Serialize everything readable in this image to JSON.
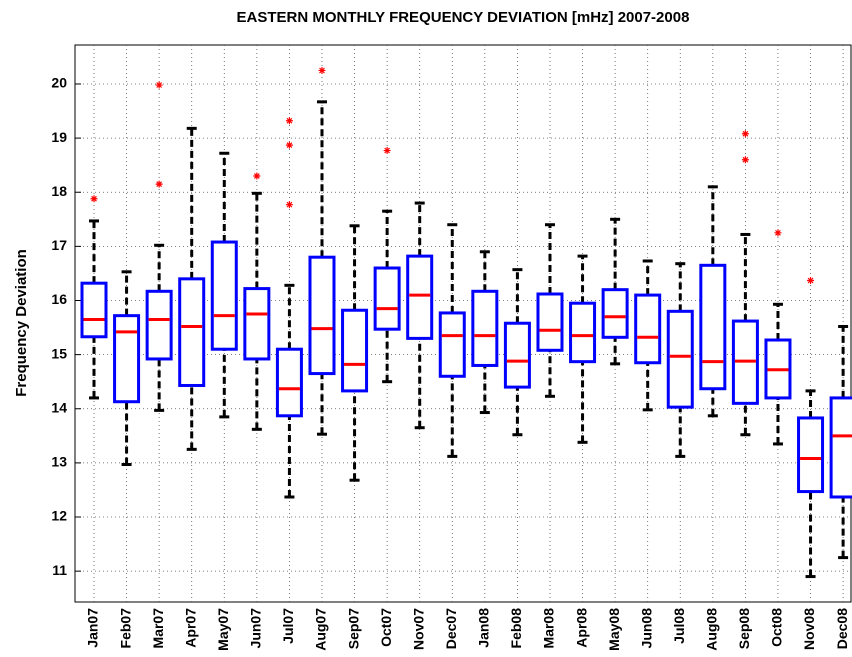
{
  "chart_data": {
    "type": "box",
    "title": "EASTERN MONTHLY FREQUENCY DEVIATION [mHz] 2007-2008",
    "y_label": "Frequency Deviation",
    "categories": [
      "Jan07",
      "Feb07",
      "Mar07",
      "Apr07",
      "May07",
      "Jun07",
      "Jul07",
      "Aug07",
      "Sep07",
      "Oct07",
      "Nov07",
      "Dec07",
      "Jan08",
      "Feb08",
      "Mar08",
      "Apr08",
      "May08",
      "Jun08",
      "Jul08",
      "Aug08",
      "Sep08",
      "Oct08",
      "Nov08",
      "Dec08"
    ],
    "whisker_low": [
      14.2,
      12.97,
      13.97,
      13.25,
      13.85,
      13.62,
      12.37,
      13.53,
      12.68,
      14.5,
      13.65,
      13.12,
      13.93,
      13.52,
      14.23,
      13.38,
      14.83,
      13.98,
      13.12,
      13.87,
      13.52,
      13.35,
      10.9,
      11.25
    ],
    "q1": [
      15.33,
      14.13,
      14.92,
      14.43,
      15.1,
      14.92,
      13.87,
      14.65,
      14.33,
      15.47,
      15.3,
      14.6,
      14.8,
      14.4,
      15.08,
      14.87,
      15.32,
      14.85,
      14.03,
      14.37,
      14.1,
      14.2,
      12.47,
      12.37
    ],
    "median": [
      15.65,
      15.42,
      15.65,
      15.52,
      15.72,
      15.75,
      14.37,
      15.48,
      14.82,
      15.85,
      16.1,
      15.35,
      15.35,
      14.88,
      15.45,
      15.35,
      15.7,
      15.32,
      14.97,
      14.87,
      14.88,
      14.72,
      13.08,
      13.5
    ],
    "q3": [
      16.32,
      15.72,
      16.17,
      16.4,
      17.08,
      16.22,
      15.1,
      16.8,
      15.82,
      16.6,
      16.82,
      15.77,
      16.17,
      15.58,
      16.12,
      15.95,
      16.2,
      16.1,
      15.8,
      16.65,
      15.62,
      15.27,
      13.83,
      14.2
    ],
    "whisker_high": [
      17.47,
      16.53,
      17.02,
      19.18,
      18.72,
      17.98,
      16.28,
      19.67,
      17.38,
      17.65,
      17.8,
      17.4,
      16.9,
      16.57,
      17.4,
      16.82,
      17.5,
      16.73,
      16.68,
      18.1,
      17.22,
      15.93,
      14.33,
      15.52
    ],
    "outliers": [
      [
        17.88
      ],
      [],
      [
        18.15,
        19.98
      ],
      [],
      [],
      [
        18.3
      ],
      [
        17.77,
        18.87,
        19.32
      ],
      [
        20.25
      ],
      [],
      [
        18.77
      ],
      [],
      [],
      [],
      [],
      [],
      [],
      [],
      [],
      [],
      [],
      [
        18.6,
        19.08
      ],
      [
        17.25
      ],
      [
        16.37
      ],
      []
    ],
    "ylim": [
      10.43,
      20.72
    ],
    "yticks": [
      11,
      12,
      13,
      14,
      15,
      16,
      17,
      18,
      19,
      20
    ],
    "grid": true,
    "box_color": "#0000ff",
    "median_color": "#ff0000",
    "whisker_color": "#000000",
    "outlier_color": "#ff0000"
  }
}
